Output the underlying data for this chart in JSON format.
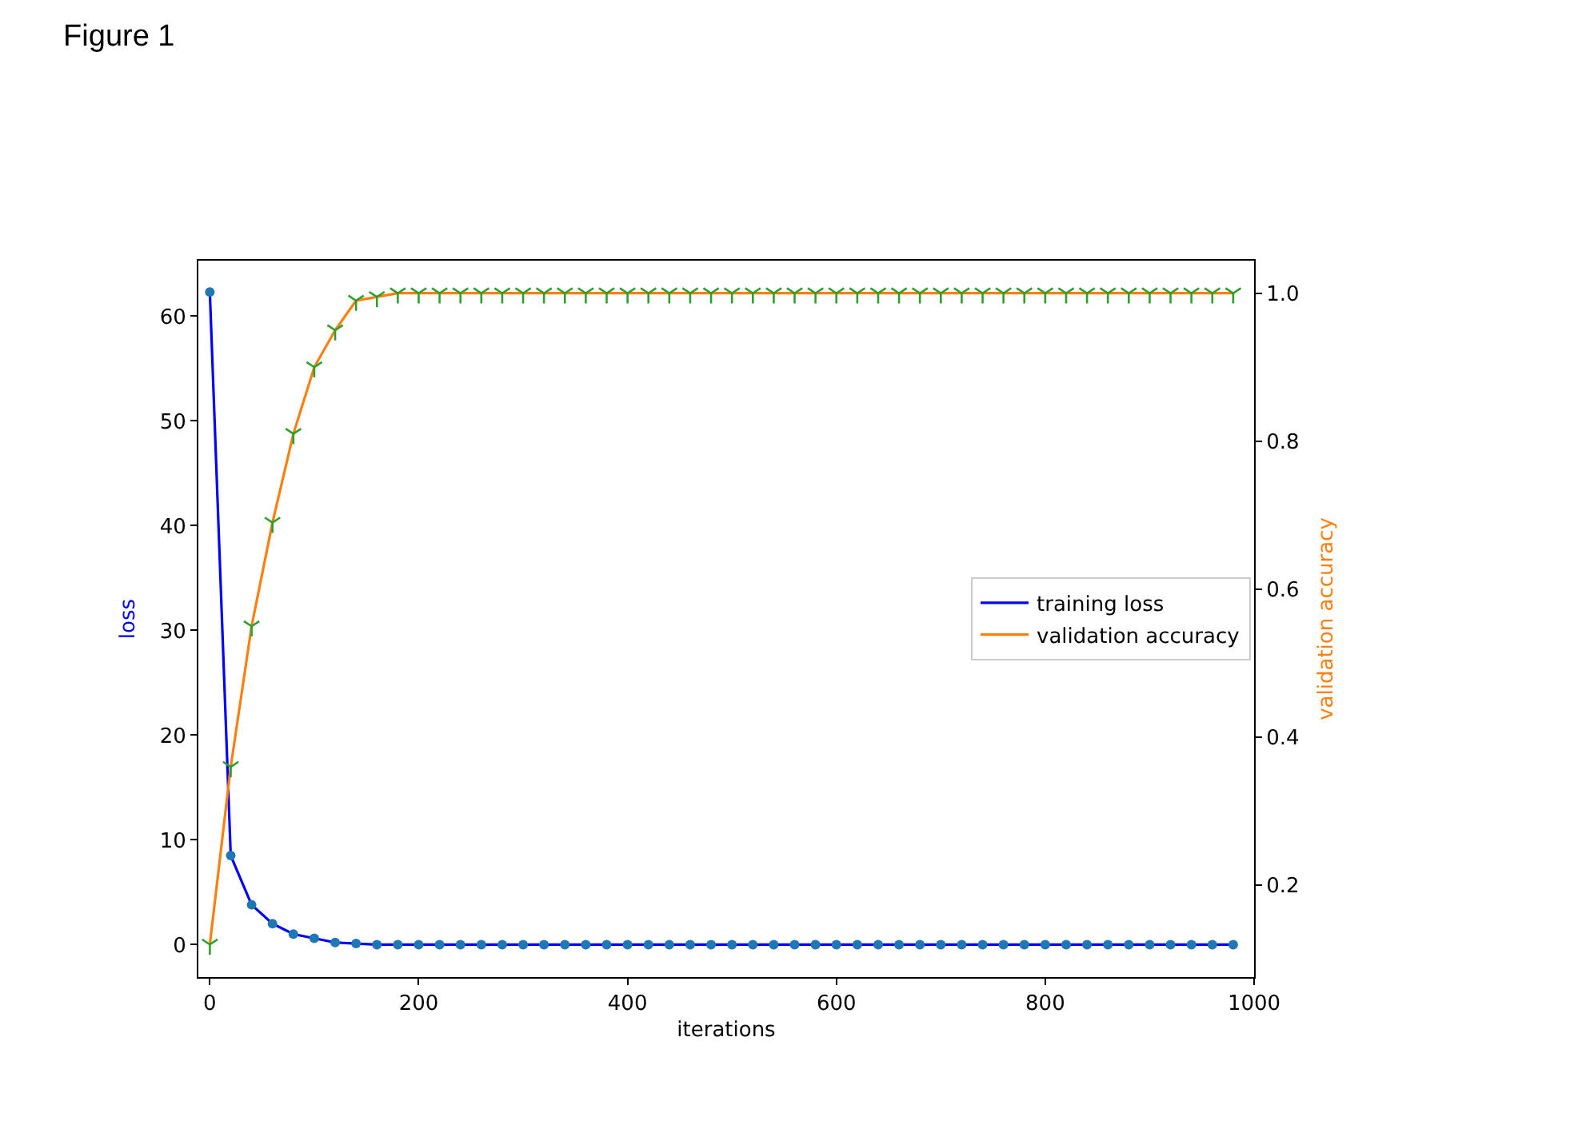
{
  "chart_data": {
    "type": "line",
    "title": "Figure 1",
    "xlabel": "iterations",
    "ylabel": "loss",
    "y2label": "validation accuracy",
    "x": [
      0,
      20,
      40,
      60,
      80,
      100,
      120,
      140,
      160,
      180,
      200,
      220,
      240,
      260,
      280,
      300,
      320,
      340,
      360,
      380,
      400,
      420,
      440,
      460,
      480,
      500,
      520,
      540,
      560,
      580,
      600,
      620,
      640,
      660,
      680,
      700,
      720,
      740,
      760,
      780,
      800,
      820,
      840,
      860,
      880,
      900,
      920,
      940,
      960,
      980
    ],
    "xlim": [
      -11,
      1000
    ],
    "xticks": [
      0,
      200,
      400,
      600,
      800,
      1000
    ],
    "ylim": [
      -3.1,
      65.3
    ],
    "yticks": [
      0,
      10,
      20,
      30,
      40,
      50,
      60
    ],
    "y2lim": [
      0.076,
      1.044
    ],
    "y2ticks": [
      0.2,
      0.4,
      0.6,
      0.8,
      {
        "value": 1.0,
        "label": "1.0"
      }
    ],
    "legend": "right",
    "series": [
      {
        "name": "training loss",
        "color": "#0000ff",
        "values": [
          62.3,
          8.5,
          3.8,
          2.0,
          1.0,
          0.6,
          0.2,
          0.1,
          0,
          0,
          0,
          0,
          0,
          0,
          0,
          0,
          0,
          0,
          0,
          0,
          0,
          0,
          0,
          0,
          0,
          0,
          0,
          0,
          0,
          0,
          0,
          0,
          0,
          0,
          0,
          0,
          0,
          0,
          0,
          0,
          0,
          0,
          0,
          0,
          0,
          0,
          0,
          0,
          0,
          0
        ]
      },
      {
        "type": "scatter",
        "marker": "circle",
        "color": "#1f77b4",
        "values": [
          62.3,
          8.5,
          3.8,
          2.0,
          1.0,
          0.6,
          0.2,
          0.1,
          0,
          0,
          0,
          0,
          0,
          0,
          0,
          0,
          0,
          0,
          0,
          0,
          0,
          0,
          0,
          0,
          0,
          0,
          0,
          0,
          0,
          0,
          0,
          0,
          0,
          0,
          0,
          0,
          0,
          0,
          0,
          0,
          0,
          0,
          0,
          0,
          0,
          0,
          0,
          0,
          0,
          0
        ]
      },
      {
        "name": "validation accuracy",
        "axis": "y2",
        "color": "#ff7f0e",
        "values": [
          0.12,
          0.36,
          0.55,
          0.69,
          0.81,
          0.9,
          0.95,
          0.99,
          0.995,
          1,
          1,
          1,
          1,
          1,
          1,
          1,
          1,
          1,
          1,
          1,
          1,
          1,
          1,
          1,
          1,
          1,
          1,
          1,
          1,
          1,
          1,
          1,
          1,
          1,
          1,
          1,
          1,
          1,
          1,
          1,
          1,
          1,
          1,
          1,
          1,
          1,
          1,
          1,
          1,
          1
        ]
      },
      {
        "type": "scatter",
        "marker": "cross",
        "axis": "y2",
        "color": "#2ca02c",
        "values": [
          0.12,
          0.36,
          0.55,
          0.69,
          0.81,
          0.9,
          0.95,
          0.99,
          0.995,
          1,
          1,
          1,
          1,
          1,
          1,
          1,
          1,
          1,
          1,
          1,
          1,
          1,
          1,
          1,
          1,
          1,
          1,
          1,
          1,
          1,
          1,
          1,
          1,
          1,
          1,
          1,
          1,
          1,
          1,
          1,
          1,
          1,
          1,
          1,
          1,
          1,
          1,
          1,
          1,
          1
        ]
      }
    ]
  }
}
